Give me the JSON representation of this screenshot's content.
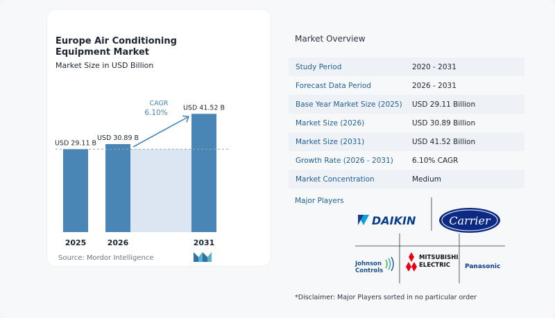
{
  "chart_data": {
    "type": "bar",
    "title": "Europe Air Conditioning Equipment Market",
    "subtitle": "Market Size in USD Billion",
    "categories": [
      "2025",
      "2026",
      "2031"
    ],
    "values": [
      29.11,
      30.89,
      41.52
    ],
    "data_labels": [
      "USD 29.11 B",
      "USD 30.89 B",
      "USD 41.52 B"
    ],
    "ylim": [
      0,
      45
    ],
    "cagr_label": "CAGR",
    "cagr_value": "6.10%",
    "bar_color": "#4a86b5",
    "highlight_color": "#dbe6f2",
    "source": "Source:  Mordor Intelligence"
  },
  "overview": {
    "title": "Market Overview",
    "rows": [
      {
        "label": "Study Period",
        "value": "2020 - 2031"
      },
      {
        "label": "Forecast Data Period",
        "value": "2026 - 2031"
      },
      {
        "label": "Base Year Market Size (2025)",
        "value": "USD 29.11 Billion"
      },
      {
        "label": "Market Size (2026)",
        "value": "USD 30.89 Billion"
      },
      {
        "label": "Market Size (2031)",
        "value": "USD 41.52 Billion"
      },
      {
        "label": "Growth Rate (2026 - 2031)",
        "value": "6.10% CAGR"
      },
      {
        "label": "Market Concentration",
        "value": "Medium"
      }
    ]
  },
  "players": {
    "title": "Major Players",
    "logos": [
      "DAIKIN",
      "Carrier",
      "Johnson Controls",
      "MITSUBISHI ELECTRIC",
      "Panasonic"
    ],
    "johnson_line1": "Johnson",
    "johnson_line2": "Controls",
    "mitsubishi_line1": "MITSUBISHI",
    "mitsubishi_line2": "ELECTRIC"
  },
  "disclaimer": "*Disclaimer: Major Players sorted in no particular order"
}
